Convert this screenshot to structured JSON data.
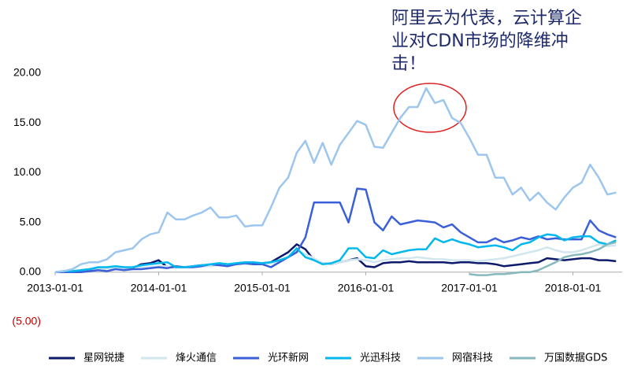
{
  "chart_data": {
    "type": "line",
    "annotation": [
      "阿里云为代表，云计算企",
      "业对CDN市场的降维冲",
      "击！"
    ],
    "x": [
      "2013-01-01",
      "2013-02-01",
      "2013-03-01",
      "2013-04-01",
      "2013-05-01",
      "2013-06-01",
      "2013-07-01",
      "2013-08-01",
      "2013-09-01",
      "2013-10-01",
      "2013-11-01",
      "2013-12-01",
      "2014-01-01",
      "2014-02-01",
      "2014-03-01",
      "2014-04-01",
      "2014-05-01",
      "2014-06-01",
      "2014-07-01",
      "2014-08-01",
      "2014-09-01",
      "2014-10-01",
      "2014-11-01",
      "2014-12-01",
      "2015-01-01",
      "2015-02-01",
      "2015-03-01",
      "2015-04-01",
      "2015-05-01",
      "2015-06-01",
      "2015-07-01",
      "2015-08-01",
      "2015-09-01",
      "2015-10-01",
      "2015-11-01",
      "2015-12-01",
      "2016-01-01",
      "2016-02-01",
      "2016-03-01",
      "2016-04-01",
      "2016-05-01",
      "2016-06-01",
      "2016-07-01",
      "2016-08-01",
      "2016-09-01",
      "2016-10-01",
      "2016-11-01",
      "2016-12-01",
      "2017-01-01",
      "2017-02-01",
      "2017-03-01",
      "2017-04-01",
      "2017-05-01",
      "2017-06-01",
      "2017-07-01",
      "2017-08-01",
      "2017-09-01",
      "2017-10-01",
      "2017-11-01",
      "2017-12-01",
      "2018-01-01",
      "2018-02-01",
      "2018-03-01",
      "2018-04-01",
      "2018-05-01",
      "2018-06-01"
    ],
    "xticks": [
      "2013-01-01",
      "2014-01-01",
      "2015-01-01",
      "2016-01-01",
      "2017-01-01",
      "2018-01-01"
    ],
    "ylim": [
      -5,
      20
    ],
    "yticks": [
      {
        "value": -5,
        "label": "(5.00)"
      },
      {
        "value": 0,
        "label": "0.00"
      },
      {
        "value": 5,
        "label": "5.00"
      },
      {
        "value": 10,
        "label": "10.00"
      },
      {
        "value": 15,
        "label": "15.00"
      },
      {
        "value": 20,
        "label": "20.00"
      }
    ],
    "negative_tick_color": "#c00000",
    "series": [
      {
        "name": "星网锐捷",
        "color": "#0d1a6b",
        "values": [
          0,
          0,
          0,
          0.2,
          0.3,
          0.3,
          0.4,
          0.4,
          0.3,
          0.4,
          0.8,
          0.9,
          1.2,
          0.5,
          0.5,
          0.5,
          0.6,
          0.7,
          0.7,
          0.8,
          0.8,
          0.8,
          0.8,
          0.9,
          0.9,
          1.0,
          1.5,
          2.0,
          2.8,
          2.3,
          1.2,
          0.9,
          0.8,
          1.0,
          1.2,
          1.4,
          0.6,
          0.5,
          0.9,
          1.0,
          1.0,
          1.1,
          1.0,
          1.0,
          1.0,
          1.0,
          0.9,
          1.0,
          1.0,
          0.9,
          0.9,
          0.8,
          0.6,
          0.7,
          0.8,
          0.9,
          1.0,
          1.4,
          1.3,
          1.2,
          1.3,
          1.4,
          1.4,
          1.2,
          1.2,
          1.1
        ]
      },
      {
        "name": "烽火通信",
        "color": "#d2e6ee",
        "values": [
          0,
          0,
          0.1,
          0.2,
          0.3,
          0.3,
          0.4,
          0.4,
          0.4,
          0.5,
          0.5,
          0.5,
          0.6,
          0.6,
          0.5,
          0.5,
          0.6,
          0.6,
          0.6,
          0.7,
          0.7,
          0.8,
          0.8,
          0.8,
          0.8,
          0.9,
          1.0,
          1.5,
          2.2,
          1.8,
          1.4,
          0.9,
          0.8,
          1.0,
          1.2,
          1.3,
          1.2,
          1.0,
          1.2,
          1.3,
          1.4,
          1.4,
          1.5,
          1.4,
          1.3,
          1.3,
          1.2,
          1.2,
          1.2,
          1.1,
          1.2,
          1.3,
          1.4,
          1.6,
          1.8,
          2.0,
          2.2,
          2.5,
          2.2,
          2.0,
          2.0,
          2.2,
          2.5,
          2.8,
          2.6,
          2.7
        ]
      },
      {
        "name": "光环新网",
        "color": "#3a5fd9",
        "values": [
          0,
          0,
          0,
          0,
          0.1,
          0.2,
          0.1,
          0.3,
          0.2,
          0.3,
          0.3,
          0.4,
          0.5,
          0.4,
          0.6,
          0.5,
          0.5,
          0.6,
          0.8,
          0.7,
          0.6,
          0.8,
          0.9,
          0.8,
          0.8,
          0.5,
          1.0,
          1.5,
          2.0,
          3.5,
          7.0,
          7.0,
          7.0,
          7.0,
          5.0,
          8.4,
          8.3,
          5.0,
          4.2,
          5.6,
          4.8,
          5.0,
          5.2,
          5.1,
          5.0,
          4.5,
          4.8,
          4.0,
          3.5,
          3.0,
          3.0,
          3.4,
          3.0,
          3.2,
          3.5,
          3.3,
          3.6,
          3.3,
          3.4,
          3.3,
          3.3,
          3.3,
          5.2,
          4.2,
          3.8,
          3.5
        ]
      },
      {
        "name": "光迅科技",
        "color": "#00b8ee",
        "values": [
          0,
          0.1,
          0.1,
          0.2,
          0.3,
          0.5,
          0.5,
          0.6,
          0.5,
          0.5,
          0.7,
          0.8,
          0.9,
          1.0,
          0.5,
          0.5,
          0.6,
          0.7,
          0.8,
          0.9,
          0.8,
          0.9,
          1.0,
          1.0,
          0.9,
          1.0,
          1.2,
          1.5,
          2.4,
          1.5,
          1.2,
          0.8,
          0.9,
          1.2,
          2.4,
          2.4,
          1.5,
          1.4,
          2.2,
          1.8,
          2.0,
          2.2,
          2.3,
          2.3,
          3.4,
          3.0,
          3.3,
          3.0,
          2.8,
          2.5,
          2.6,
          2.7,
          2.5,
          2.2,
          2.8,
          3.0,
          3.5,
          3.8,
          3.7,
          3.2,
          3.5,
          3.6,
          3.6,
          3.0,
          2.8,
          3.2
        ]
      },
      {
        "name": "网宿科技",
        "color": "#9cc6ee",
        "values": [
          0,
          0.1,
          0.3,
          0.8,
          1.0,
          1.0,
          1.3,
          2.0,
          2.2,
          2.4,
          3.3,
          3.8,
          4.0,
          6.0,
          5.3,
          5.3,
          5.7,
          6.0,
          6.5,
          5.5,
          5.5,
          5.7,
          4.6,
          4.7,
          4.7,
          6.5,
          8.5,
          9.5,
          12.0,
          13.2,
          11.0,
          13.0,
          10.8,
          12.8,
          14.0,
          15.2,
          14.8,
          12.6,
          12.5,
          14.0,
          15.5,
          16.6,
          16.6,
          18.5,
          17.0,
          17.3,
          15.5,
          15.0,
          13.5,
          11.8,
          11.8,
          9.5,
          9.5,
          7.8,
          8.5,
          7.2,
          8.0,
          7.0,
          6.3,
          7.5,
          8.5,
          9.0,
          10.8,
          9.5,
          7.8,
          8.0
        ]
      },
      {
        "name": "万国数据GDS",
        "color": "#86b9bd",
        "values": [
          null,
          null,
          null,
          null,
          null,
          null,
          null,
          null,
          null,
          null,
          null,
          null,
          null,
          null,
          null,
          null,
          null,
          null,
          null,
          null,
          null,
          null,
          null,
          null,
          null,
          null,
          null,
          null,
          null,
          null,
          null,
          null,
          null,
          null,
          null,
          null,
          null,
          null,
          null,
          null,
          null,
          null,
          null,
          null,
          null,
          null,
          null,
          null,
          -0.2,
          -0.3,
          -0.3,
          -0.2,
          -0.2,
          -0.1,
          0,
          0,
          0.2,
          0.6,
          1.0,
          1.5,
          1.7,
          1.8,
          2.0,
          2.3,
          2.8,
          3.0
        ]
      }
    ]
  }
}
